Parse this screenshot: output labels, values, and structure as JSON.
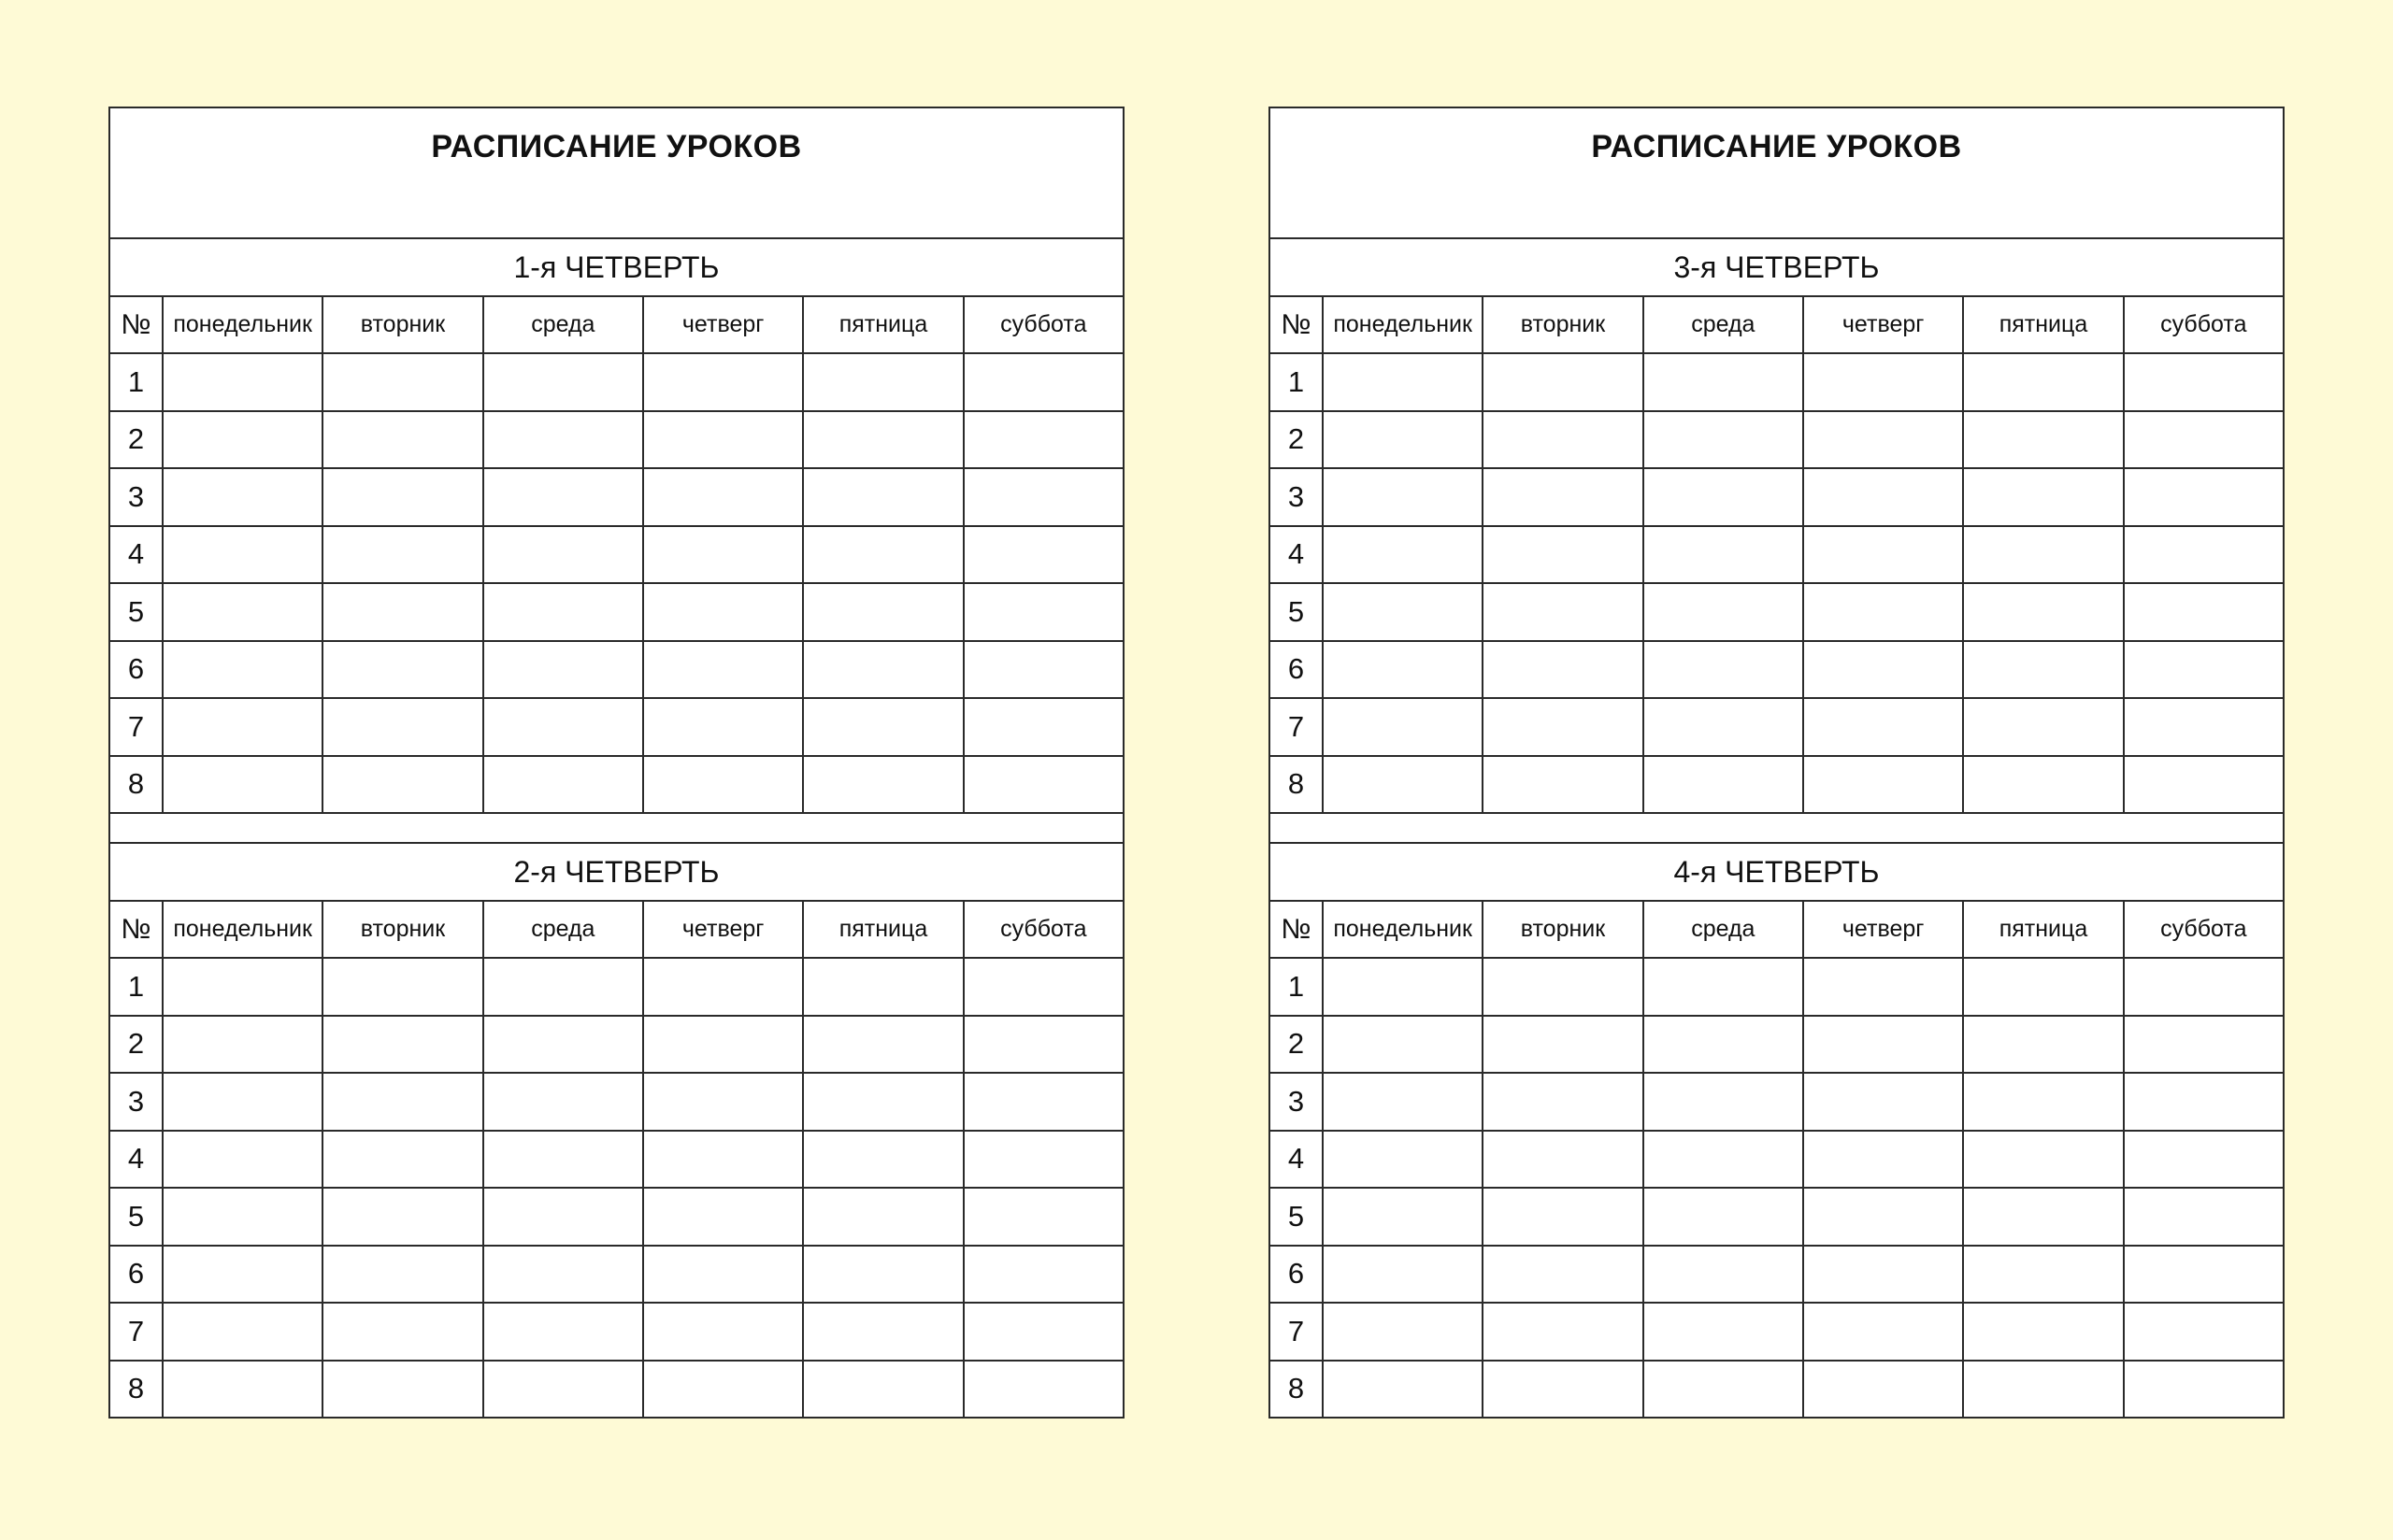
{
  "sheets": [
    {
      "title": "РАСПИСАНИЕ УРОКОВ",
      "quarters": [
        {
          "label": "1-я ЧЕТВЕРТЬ"
        },
        {
          "label": "2-я ЧЕТВЕРТЬ"
        }
      ]
    },
    {
      "title": "РАСПИСАНИЕ УРОКОВ",
      "quarters": [
        {
          "label": "3-я ЧЕТВЕРТЬ"
        },
        {
          "label": "4-я ЧЕТВЕРТЬ"
        }
      ]
    }
  ],
  "columns": [
    "№",
    "понедельник",
    "вторник",
    "среда",
    "четверг",
    "пятница",
    "суббота"
  ],
  "lessons": [
    "1",
    "2",
    "3",
    "4",
    "5",
    "6",
    "7",
    "8"
  ],
  "colors": {
    "background": "#fefad6",
    "paper": "#ffffff",
    "lines": "#2a2a2a"
  }
}
